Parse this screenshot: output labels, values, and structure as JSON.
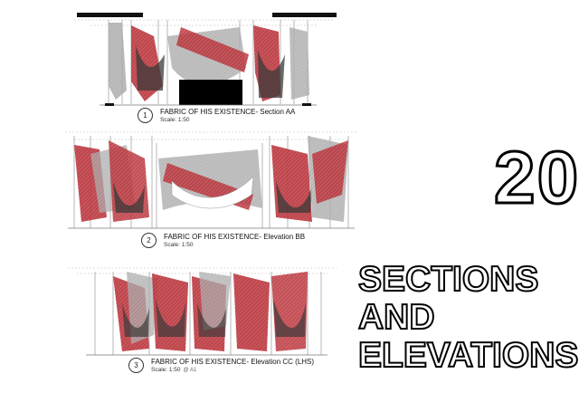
{
  "sheet": {
    "number": "20",
    "title_lines": [
      "SECTIONS",
      "AND",
      "ELEVATIONS"
    ]
  },
  "drawings": [
    {
      "number": "1",
      "title": "FABRIC OF HIS EXISTENCE- Section AA",
      "scale": "Scale: 1:50",
      "extra": ""
    },
    {
      "number": "2",
      "title": "FABRIC OF HIS EXISTENCE- Elevation BB",
      "scale": "Scale: 1:50",
      "extra": ""
    },
    {
      "number": "3",
      "title": "FABRIC OF HIS EXISTENCE- Elevation CC (LHS)",
      "scale": "Scale: 1:50",
      "extra": "@ A1"
    }
  ],
  "colors": {
    "red_fabric": "#b8333a",
    "grey_fabric": "#a9a9a9",
    "dark_fabric": "#3a3a3a",
    "frame_line": "#999999"
  }
}
